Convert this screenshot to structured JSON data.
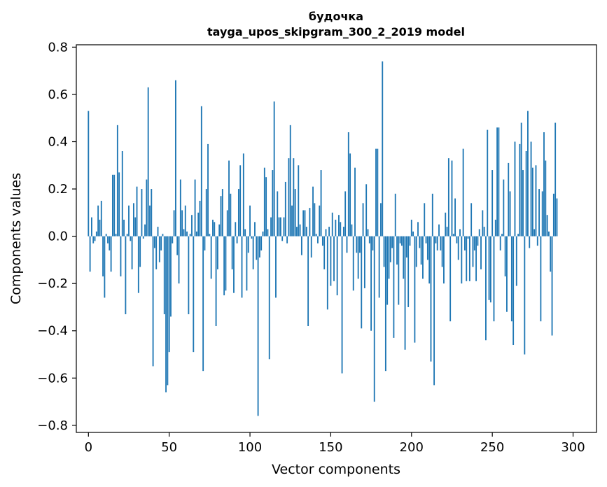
{
  "chart_data": {
    "type": "bar",
    "title": "будочка",
    "subtitle": "tayga_upos_skipgram_300_2_2019 model",
    "xlabel": "Vector components",
    "ylabel": "Components values",
    "xlim": [
      -7.5,
      314.5
    ],
    "ylim": [
      -0.83,
      0.81
    ],
    "xticks": [
      0,
      50,
      100,
      150,
      200,
      250,
      300
    ],
    "xtick_labels": [
      "0",
      "50",
      "100",
      "150",
      "200",
      "250",
      "300"
    ],
    "yticks": [
      -0.8,
      -0.6,
      -0.4,
      -0.2,
      0.0,
      0.2,
      0.4,
      0.6,
      0.8
    ],
    "ytick_labels": [
      "−0.8",
      "−0.6",
      "−0.4",
      "−0.2",
      "0.0",
      "0.2",
      "0.4",
      "0.6",
      "0.8"
    ],
    "bar_color": "#1f77b4",
    "values": [
      0.53,
      -0.15,
      0.08,
      -0.03,
      -0.02,
      0.02,
      0.13,
      0.07,
      0.15,
      -0.17,
      -0.26,
      0.01,
      -0.03,
      -0.06,
      -0.15,
      0.26,
      0.26,
      0.01,
      0.47,
      0.27,
      -0.17,
      0.36,
      0.07,
      -0.33,
      0.01,
      0.13,
      -0.02,
      -0.14,
      0.14,
      0.08,
      0.21,
      -0.24,
      -0.13,
      0.2,
      -0.01,
      0.05,
      0.24,
      0.63,
      0.13,
      0.2,
      -0.55,
      -0.05,
      -0.14,
      0.04,
      -0.11,
      -0.06,
      0.01,
      -0.33,
      -0.66,
      -0.63,
      -0.49,
      -0.34,
      -0.03,
      0.11,
      0.66,
      -0.08,
      -0.2,
      0.24,
      0.11,
      0.03,
      0.13,
      0.02,
      -0.33,
      0.01,
      0.09,
      -0.49,
      0.24,
      0.02,
      0.1,
      0.15,
      0.55,
      -0.57,
      -0.06,
      0.2,
      0.39,
      0.01,
      -0.18,
      0.07,
      0.06,
      -0.38,
      -0.14,
      0.05,
      0.17,
      0.2,
      -0.25,
      -0.23,
      0.11,
      0.32,
      0.18,
      -0.14,
      -0.24,
      0.06,
      -0.03,
      0.2,
      0.3,
      -0.26,
      0.35,
      0.03,
      -0.23,
      -0.07,
      0.13,
      -0.01,
      -0.14,
      0.06,
      -0.1,
      -0.76,
      -0.09,
      -0.06,
      0.02,
      0.29,
      0.25,
      0.03,
      -0.52,
      0.08,
      0.28,
      0.57,
      -0.26,
      0.19,
      0.08,
      0.08,
      -0.02,
      0.08,
      0.23,
      -0.03,
      0.33,
      0.47,
      0.13,
      0.33,
      0.2,
      0.04,
      0.3,
      0.05,
      -0.08,
      0.11,
      0.11,
      0.04,
      -0.38,
      0.12,
      -0.09,
      0.21,
      0.14,
      0.01,
      -0.03,
      0.13,
      0.28,
      -0.04,
      -0.14,
      0.03,
      -0.31,
      0.04,
      -0.21,
      0.1,
      -0.19,
      0.07,
      -0.25,
      0.09,
      0.06,
      -0.58,
      0.04,
      0.19,
      -0.07,
      0.44,
      0.35,
      0.05,
      -0.23,
      0.29,
      -0.07,
      -0.18,
      -0.07,
      -0.39,
      0.14,
      -0.22,
      0.22,
      0.03,
      -0.03,
      -0.4,
      -0.06,
      -0.7,
      0.37,
      0.37,
      -0.26,
      0.14,
      0.74,
      -0.13,
      -0.57,
      -0.29,
      -0.18,
      -0.11,
      -0.05,
      -0.43,
      0.18,
      -0.12,
      -0.29,
      -0.03,
      -0.04,
      -0.18,
      -0.48,
      -0.09,
      -0.3,
      -0.04,
      0.07,
      0.02,
      -0.45,
      -0.13,
      0.06,
      -0.05,
      -0.12,
      -0.18,
      0.14,
      -0.03,
      -0.1,
      -0.2,
      -0.53,
      0.18,
      -0.63,
      -0.03,
      -0.06,
      0.05,
      -0.06,
      -0.13,
      -0.2,
      0.1,
      0.04,
      0.33,
      -0.36,
      0.32,
      0.01,
      0.16,
      -0.03,
      -0.1,
      0.03,
      -0.2,
      0.37,
      -0.06,
      -0.19,
      -0.01,
      -0.19,
      0.14,
      -0.13,
      -0.06,
      -0.19,
      -0.04,
      0.03,
      -0.14,
      0.11,
      0.04,
      -0.44,
      0.45,
      -0.27,
      -0.28,
      0.28,
      -0.36,
      0.07,
      0.46,
      0.46,
      -0.06,
      0.01,
      0.24,
      -0.17,
      -0.32,
      0.31,
      0.19,
      -0.36,
      -0.46,
      0.4,
      -0.21,
      0.01,
      0.39,
      0.48,
      0.28,
      -0.5,
      0.36,
      0.53,
      -0.05,
      0.4,
      0.29,
      0.03,
      0.3,
      -0.04,
      0.2,
      -0.36,
      0.19,
      0.44,
      0.32,
      0.09,
      0.02,
      -0.15,
      -0.42,
      0.18,
      0.48,
      0.16
    ]
  }
}
